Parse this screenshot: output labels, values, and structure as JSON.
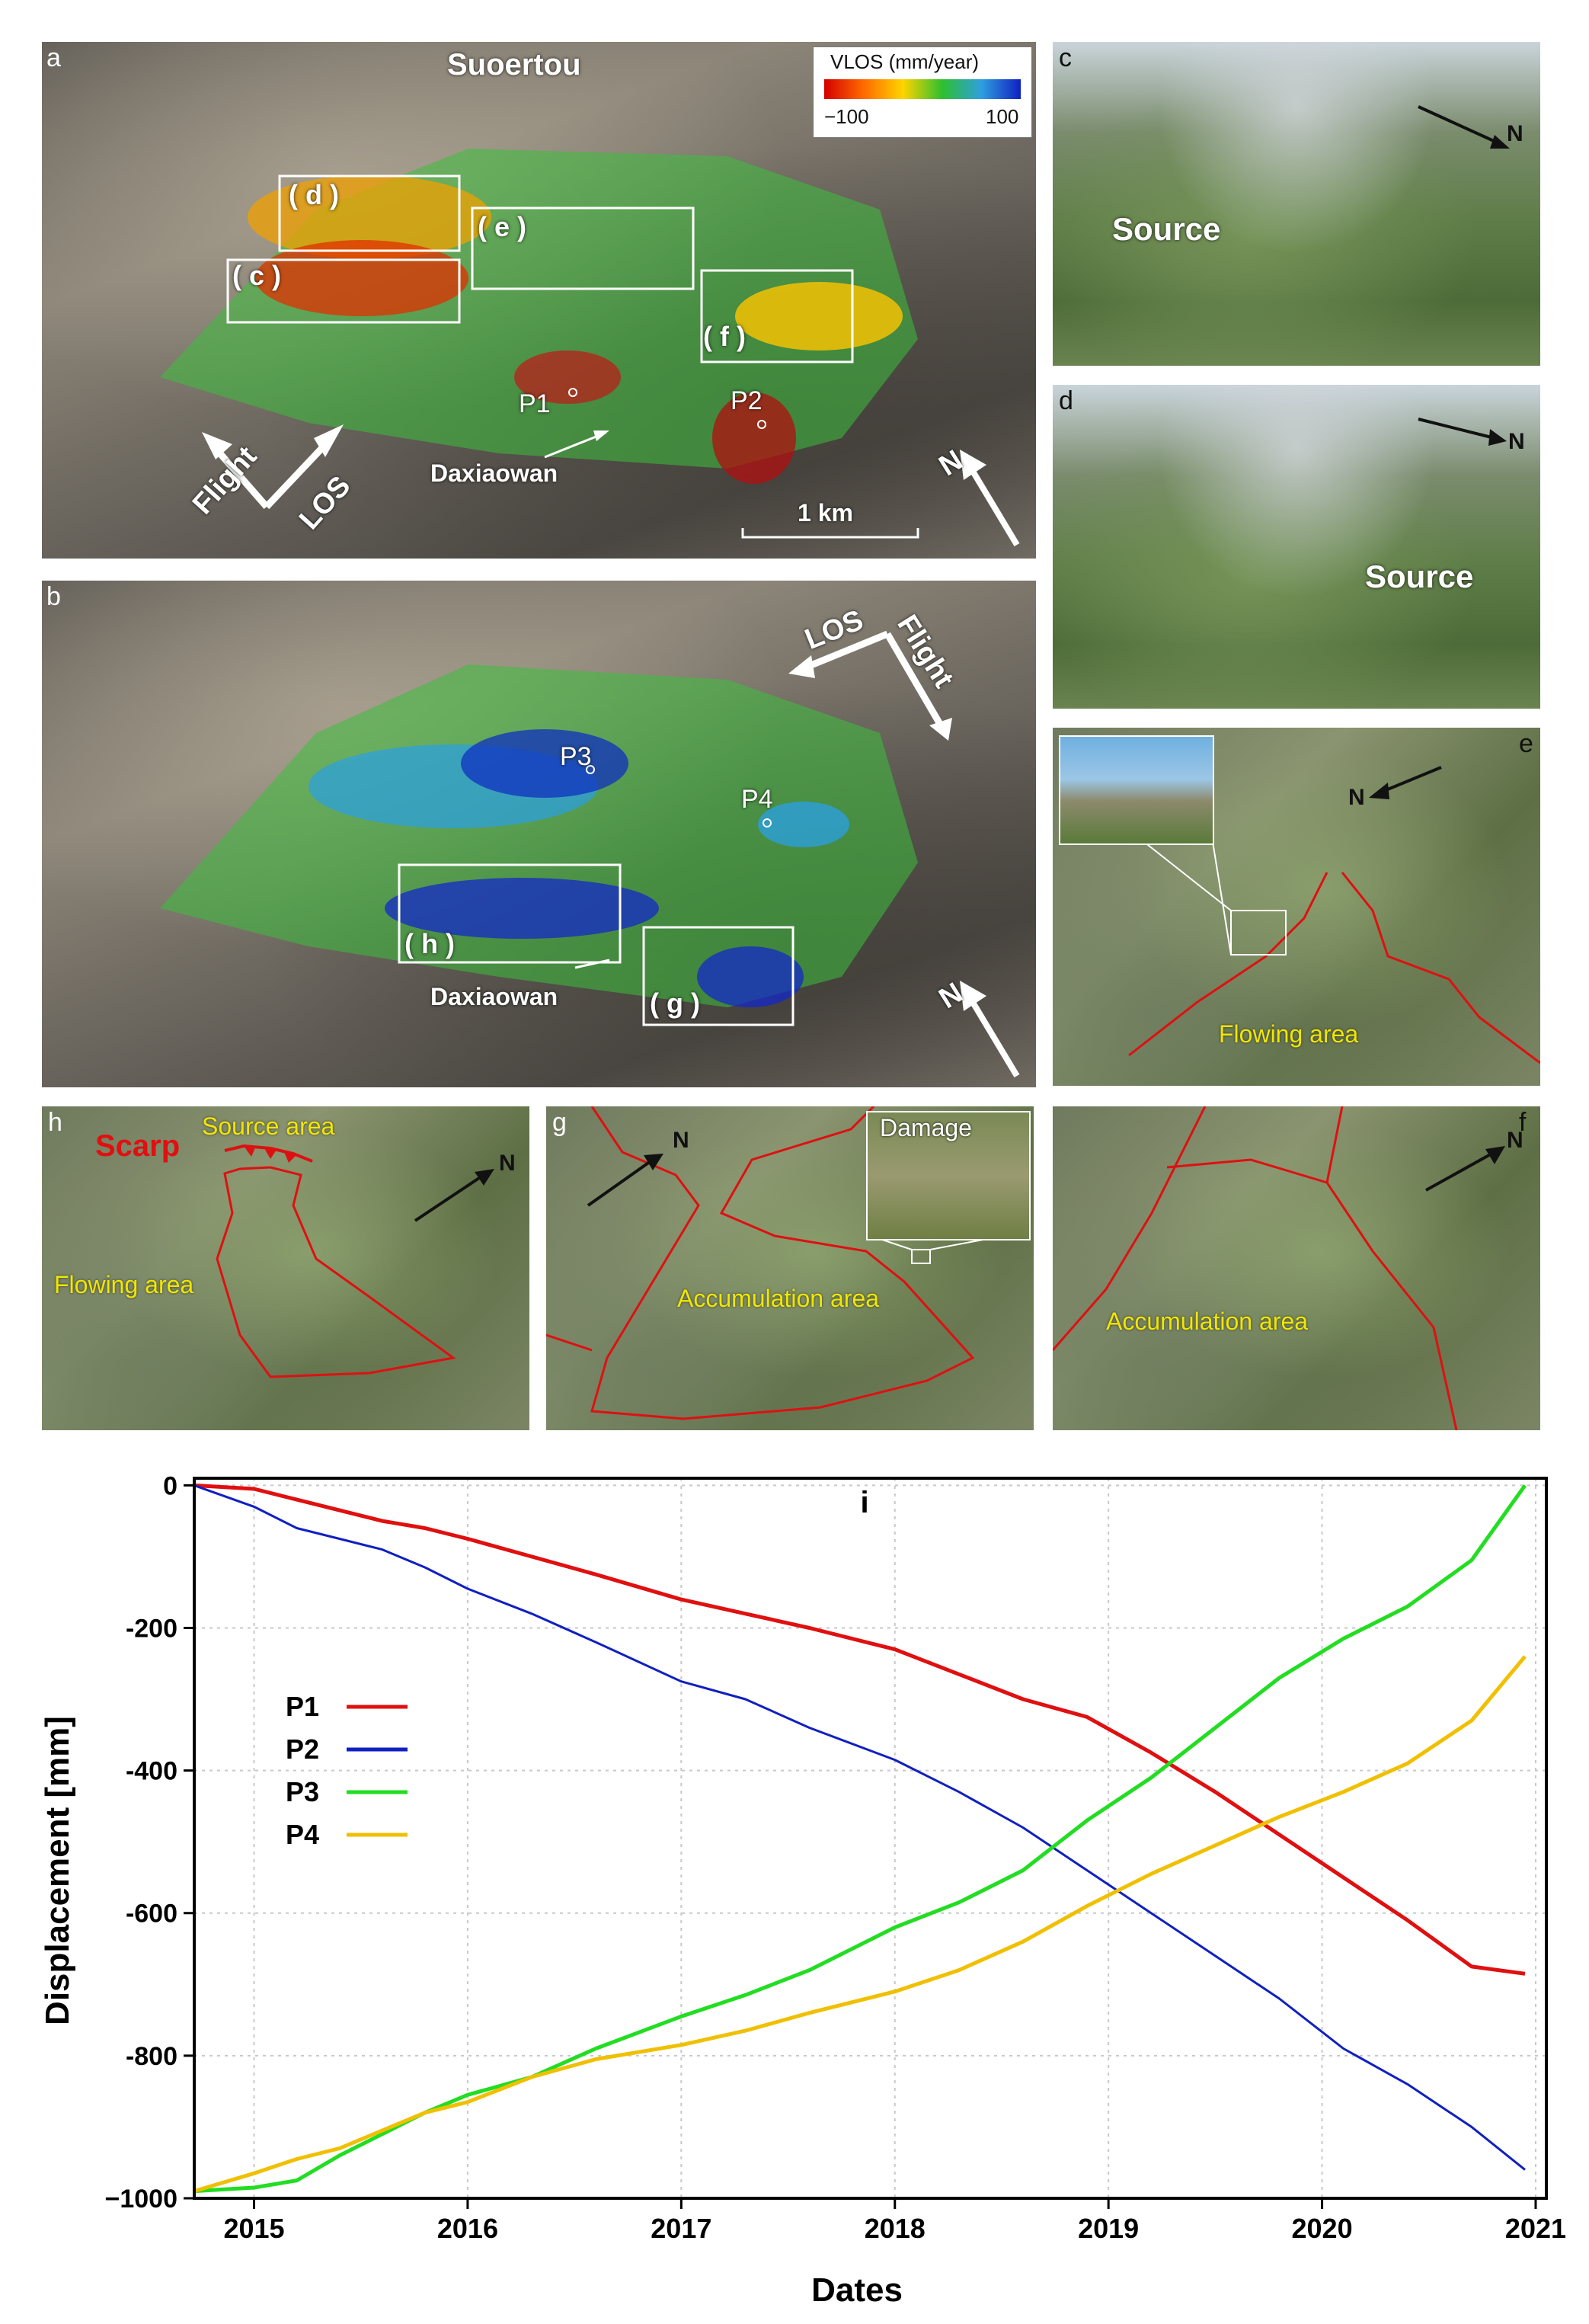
{
  "panel_a": {
    "letter": "a",
    "title": "Suoertou",
    "legend_title": "VLOS (mm/year)",
    "legend_min": "−100",
    "legend_max": "100",
    "legend_colors": [
      "#d40000",
      "#ff6a00",
      "#ffd400",
      "#2fbf2f",
      "#2f9fe0",
      "#1020c0"
    ],
    "box_labels": [
      "( d )",
      "( e )",
      "( c )",
      "( f )"
    ],
    "point_labels": [
      "P1",
      "P2"
    ],
    "place": "Daxiaowan",
    "flight": "Flight",
    "los": "LOS",
    "north": "N",
    "scale": "1 km"
  },
  "panel_b": {
    "letter": "b",
    "los": "LOS",
    "flight": "Flight",
    "point_labels": [
      "P3",
      "P4"
    ],
    "box_labels": [
      "( h )",
      "( g )"
    ],
    "place": "Daxiaowan",
    "north": "N"
  },
  "panel_c": {
    "letter": "c",
    "label": "Source",
    "north": "N"
  },
  "panel_d": {
    "letter": "d",
    "label": "Source",
    "north": "N"
  },
  "panel_e": {
    "letter": "e",
    "label": "Flowing area",
    "north": "N"
  },
  "panel_h": {
    "letter": "h",
    "scarp": "Scarp",
    "source_area": "Source area",
    "flowing_area": "Flowing area",
    "north": "N"
  },
  "panel_g": {
    "letter": "g",
    "accumulation": "Accumulation area",
    "damage": "Damage",
    "north": "N"
  },
  "panel_f": {
    "letter": "f",
    "accumulation": "Accumulation area",
    "north": "N"
  },
  "chart_data": {
    "type": "line",
    "panel_label": "i",
    "xlabel": "Dates",
    "ylabel": "Displacement [mm]",
    "xlim": [
      2014.72,
      2021.05
    ],
    "ylim": [
      -1000,
      10
    ],
    "x_ticks": [
      2015,
      2016,
      2017,
      2018,
      2019,
      2020,
      2021
    ],
    "x_tick_labels": [
      "2015",
      "2016",
      "2017",
      "2018",
      "2019",
      "2020",
      "2021"
    ],
    "y_ticks": [
      0,
      -200,
      -400,
      -600,
      -800,
      -1000
    ],
    "y_tick_labels": [
      "0",
      "-200",
      "-400",
      "-600",
      "-800",
      "−1000"
    ],
    "grid": true,
    "legend_position": "left",
    "series": [
      {
        "name": "P1",
        "color": "#e01010",
        "x": [
          2014.72,
          2015.0,
          2015.2,
          2015.4,
          2015.6,
          2015.8,
          2016.0,
          2016.3,
          2016.6,
          2017.0,
          2017.3,
          2017.6,
          2018.0,
          2018.3,
          2018.6,
          2018.9,
          2019.2,
          2019.5,
          2019.8,
          2020.1,
          2020.4,
          2020.7,
          2020.95
        ],
        "values": [
          0,
          -5,
          -20,
          -35,
          -50,
          -60,
          -75,
          -100,
          -125,
          -160,
          -180,
          -200,
          -230,
          -265,
          -300,
          -325,
          -375,
          -430,
          -490,
          -550,
          -610,
          -675,
          -685
        ]
      },
      {
        "name": "P2",
        "color": "#1020c0",
        "x": [
          2014.72,
          2015.0,
          2015.2,
          2015.4,
          2015.6,
          2015.8,
          2016.0,
          2016.3,
          2016.6,
          2017.0,
          2017.3,
          2017.6,
          2018.0,
          2018.3,
          2018.6,
          2018.9,
          2019.2,
          2019.5,
          2019.8,
          2020.1,
          2020.4,
          2020.7,
          2020.95
        ],
        "values": [
          0,
          -30,
          -60,
          -75,
          -90,
          -115,
          -145,
          -180,
          -220,
          -275,
          -300,
          -340,
          -385,
          -430,
          -480,
          -540,
          -600,
          -660,
          -720,
          -790,
          -840,
          -900,
          -960
        ]
      },
      {
        "name": "P3",
        "color": "#22dd22",
        "x": [
          2014.72,
          2015.0,
          2015.2,
          2015.4,
          2015.6,
          2015.8,
          2016.0,
          2016.3,
          2016.6,
          2017.0,
          2017.3,
          2017.6,
          2018.0,
          2018.3,
          2018.6,
          2018.9,
          2019.2,
          2019.5,
          2019.8,
          2020.1,
          2020.4,
          2020.7,
          2020.95
        ],
        "values": [
          -990,
          -985,
          -975,
          -940,
          -910,
          -880,
          -855,
          -830,
          -790,
          -745,
          -715,
          -680,
          -620,
          -585,
          -540,
          -470,
          -410,
          -340,
          -270,
          -215,
          -170,
          -105,
          0
        ]
      },
      {
        "name": "P4",
        "color": "#f0c000",
        "x": [
          2014.72,
          2015.0,
          2015.2,
          2015.4,
          2015.6,
          2015.8,
          2016.0,
          2016.3,
          2016.6,
          2017.0,
          2017.3,
          2017.6,
          2018.0,
          2018.3,
          2018.6,
          2018.9,
          2019.2,
          2019.5,
          2019.8,
          2020.1,
          2020.4,
          2020.7,
          2020.95
        ],
        "values": [
          -990,
          -965,
          -945,
          -930,
          -905,
          -880,
          -865,
          -830,
          -805,
          -785,
          -765,
          -740,
          -710,
          -680,
          -640,
          -590,
          -545,
          -505,
          -465,
          -430,
          -390,
          -330,
          -240
        ]
      }
    ]
  }
}
